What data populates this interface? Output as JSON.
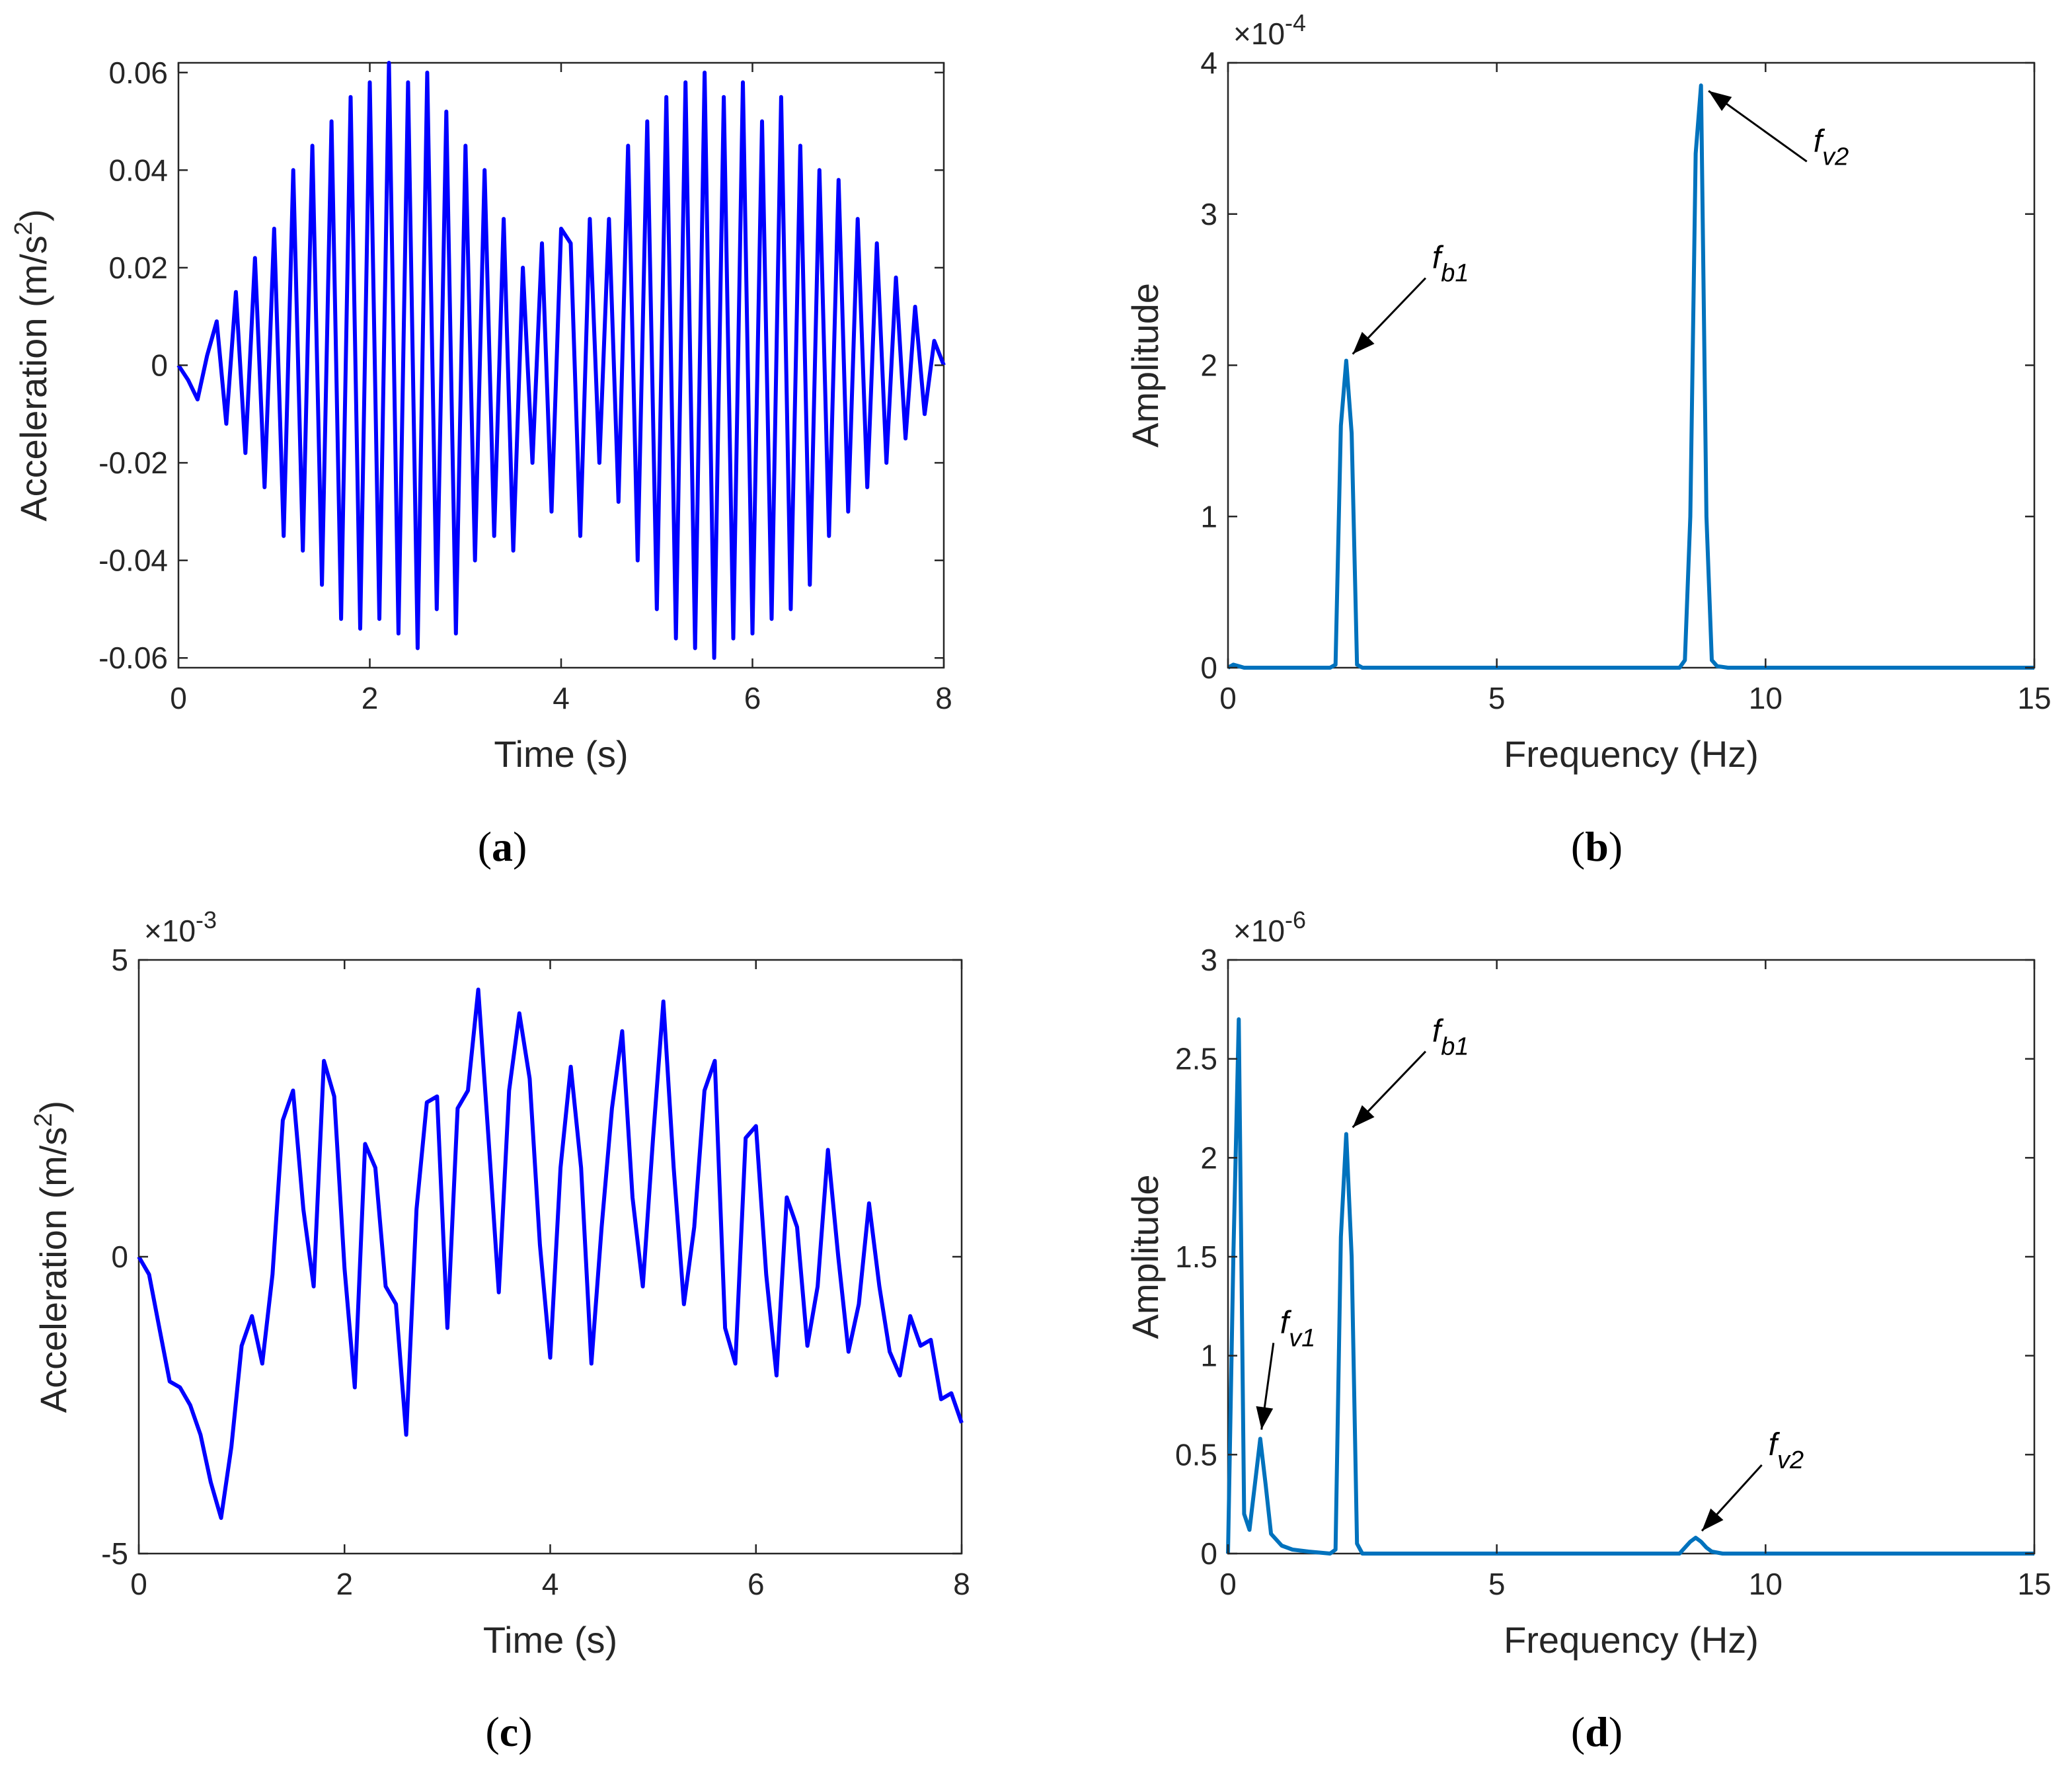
{
  "chart_data": [
    {
      "type": "line",
      "panel_label": "a",
      "xlabel": "Time (s)",
      "ylabel": "Acceleration (m/s",
      "ylabel_superscript": "2",
      "ylabel_suffix": ")",
      "xlim": [
        0,
        8
      ],
      "ylim": [
        -0.062,
        0.062
      ],
      "xticks": [
        0,
        2,
        4,
        6,
        8
      ],
      "xtick_labels": [
        "0",
        "2",
        "4",
        "6",
        "8"
      ],
      "yticks": [
        -0.06,
        -0.04,
        -0.02,
        0,
        0.02,
        0.04,
        0.06
      ],
      "ytick_labels": [
        "-0.06",
        "-0.04",
        "-0.02",
        "0",
        "0.02",
        "0.04",
        "0.06"
      ],
      "multiplier": "",
      "color": "#0000ff",
      "grid": false,
      "series": [
        {
          "x": [
            0,
            0.1,
            0.2,
            0.3,
            0.4,
            0.5,
            0.6,
            0.7,
            0.8,
            0.9,
            1.0,
            1.1,
            1.2,
            1.3,
            1.4,
            1.5,
            1.6,
            1.7,
            1.8,
            1.9,
            2.0,
            2.1,
            2.2,
            2.3,
            2.4,
            2.5,
            2.6,
            2.7,
            2.8,
            2.9,
            3.0,
            3.1,
            3.2,
            3.3,
            3.4,
            3.5,
            3.6,
            3.7,
            3.8,
            3.9,
            4.0,
            4.1,
            4.2,
            4.3,
            4.4,
            4.5,
            4.6,
            4.7,
            4.8,
            4.9,
            5.0,
            5.1,
            5.2,
            5.3,
            5.4,
            5.5,
            5.6,
            5.7,
            5.8,
            5.9,
            6.0,
            6.1,
            6.2,
            6.3,
            6.4,
            6.5,
            6.6,
            6.7,
            6.8,
            6.9,
            7.0,
            7.1,
            7.2,
            7.3,
            7.4,
            7.5,
            7.6,
            7.7,
            7.8,
            7.9,
            8.0
          ],
          "y": [
            0,
            -0.003,
            -0.007,
            0.002,
            0.009,
            -0.012,
            0.015,
            -0.018,
            0.022,
            -0.025,
            0.028,
            -0.035,
            0.04,
            -0.038,
            0.045,
            -0.045,
            0.05,
            -0.052,
            0.055,
            -0.054,
            0.058,
            -0.052,
            0.062,
            -0.055,
            0.058,
            -0.058,
            0.06,
            -0.05,
            0.052,
            -0.055,
            0.045,
            -0.04,
            0.04,
            -0.035,
            0.03,
            -0.038,
            0.02,
            -0.02,
            0.025,
            -0.03,
            0.028,
            0.025,
            -0.035,
            0.03,
            -0.02,
            0.03,
            -0.028,
            0.045,
            -0.04,
            0.05,
            -0.05,
            0.055,
            -0.056,
            0.058,
            -0.058,
            0.06,
            -0.06,
            0.055,
            -0.056,
            0.058,
            -0.055,
            0.05,
            -0.052,
            0.055,
            -0.05,
            0.045,
            -0.045,
            0.04,
            -0.035,
            0.038,
            -0.03,
            0.03,
            -0.025,
            0.025,
            -0.02,
            0.018,
            -0.015,
            0.012,
            -0.01,
            0.005,
            0
          ]
        }
      ]
    },
    {
      "type": "line",
      "panel_label": "b",
      "xlabel": "Frequency (Hz)",
      "ylabel": "Amplitude",
      "xlim": [
        0,
        15
      ],
      "ylim": [
        0,
        4
      ],
      "xticks": [
        0,
        5,
        10,
        15
      ],
      "xtick_labels": [
        "0",
        "5",
        "10",
        "15"
      ],
      "yticks": [
        0,
        1,
        2,
        3,
        4
      ],
      "ytick_labels": [
        "0",
        "1",
        "2",
        "3",
        "4"
      ],
      "multiplier": "×10",
      "multiplier_exp": "-4",
      "color": "#0072bd",
      "grid": false,
      "series": [
        {
          "x": [
            0,
            0.1,
            0.2,
            0.3,
            1.9,
            2.0,
            2.1,
            2.2,
            2.3,
            2.4,
            2.5,
            8.4,
            8.5,
            8.6,
            8.7,
            8.8,
            8.9,
            9.0,
            9.1,
            9.3,
            15
          ],
          "y": [
            0,
            0.02,
            0.01,
            0,
            0,
            0.02,
            1.6,
            2.03,
            1.55,
            0.02,
            0,
            0,
            0.05,
            1.0,
            3.4,
            3.85,
            1.0,
            0.05,
            0.01,
            0,
            0
          ]
        }
      ],
      "annotations": [
        {
          "label": "f",
          "sub": "b1",
          "x": 2.2,
          "y": 2.03
        },
        {
          "label": "f",
          "sub": "v2",
          "x": 8.8,
          "y": 3.85
        }
      ]
    },
    {
      "type": "line",
      "panel_label": "c",
      "xlabel": "Time (s)",
      "ylabel": "Acceleration (m/s",
      "ylabel_superscript": "2",
      "ylabel_suffix": ")",
      "xlim": [
        0,
        8
      ],
      "ylim": [
        -5,
        5
      ],
      "xticks": [
        0,
        2,
        4,
        6,
        8
      ],
      "xtick_labels": [
        "0",
        "2",
        "4",
        "6",
        "8"
      ],
      "yticks": [
        -5,
        0,
        5
      ],
      "ytick_labels": [
        "-5",
        "0",
        "5"
      ],
      "multiplier": "×10",
      "multiplier_exp": "-3",
      "color": "#0000ff",
      "grid": false,
      "series": [
        {
          "x": [
            0,
            0.1,
            0.2,
            0.3,
            0.4,
            0.5,
            0.6,
            0.7,
            0.8,
            0.9,
            1.0,
            1.1,
            1.2,
            1.3,
            1.4,
            1.5,
            1.6,
            1.7,
            1.8,
            1.9,
            2.0,
            2.1,
            2.2,
            2.3,
            2.4,
            2.5,
            2.6,
            2.7,
            2.8,
            2.9,
            3.0,
            3.1,
            3.2,
            3.3,
            3.4,
            3.5,
            3.6,
            3.7,
            3.8,
            3.9,
            4.0,
            4.1,
            4.2,
            4.3,
            4.4,
            4.5,
            4.6,
            4.7,
            4.8,
            4.9,
            5.0,
            5.1,
            5.2,
            5.3,
            5.4,
            5.5,
            5.6,
            5.7,
            5.8,
            5.9,
            6.0,
            6.1,
            6.2,
            6.3,
            6.4,
            6.5,
            6.6,
            6.7,
            6.8,
            6.9,
            7.0,
            7.1,
            7.2,
            7.3,
            7.4,
            7.5,
            7.6,
            7.7,
            7.8,
            7.9,
            8.0
          ],
          "y": [
            0,
            -0.3,
            -1.2,
            -2.1,
            -2.2,
            -2.5,
            -3.0,
            -3.8,
            -4.4,
            -3.2,
            -1.5,
            -1.0,
            -1.8,
            -0.3,
            2.3,
            2.8,
            0.8,
            -0.5,
            3.3,
            2.7,
            -0.2,
            -2.2,
            1.9,
            1.5,
            -0.5,
            -0.8,
            -3.0,
            0.8,
            2.6,
            2.7,
            -1.2,
            2.5,
            2.8,
            4.5,
            2.0,
            -0.6,
            2.8,
            4.1,
            3.0,
            0.2,
            -1.7,
            1.5,
            3.2,
            1.5,
            -1.8,
            0.5,
            2.5,
            3.8,
            1.0,
            -0.5,
            2.0,
            4.3,
            1.5,
            -0.8,
            0.5,
            2.8,
            3.3,
            -1.2,
            -1.8,
            2.0,
            2.2,
            -0.3,
            -2.0,
            1.0,
            0.5,
            -1.5,
            -0.5,
            1.8,
            0.0,
            -1.6,
            -0.8,
            0.9,
            -0.5,
            -1.6,
            -2.0,
            -1.0,
            -1.5,
            -1.4,
            -2.4,
            -2.3,
            -2.8
          ]
        }
      ]
    },
    {
      "type": "line",
      "panel_label": "d",
      "xlabel": "Frequency (Hz)",
      "ylabel": "Amplitude",
      "xlim": [
        0,
        15
      ],
      "ylim": [
        0,
        3
      ],
      "xticks": [
        0,
        5,
        10,
        15
      ],
      "xtick_labels": [
        "0",
        "5",
        "10",
        "15"
      ],
      "yticks": [
        0,
        0.5,
        1,
        1.5,
        2,
        2.5,
        3
      ],
      "ytick_labels": [
        "0",
        "0.5",
        "1",
        "1.5",
        "2",
        "2.5",
        "3"
      ],
      "multiplier": "×10",
      "multiplier_exp": "-6",
      "color": "#0072bd",
      "grid": false,
      "series": [
        {
          "x": [
            0,
            0.1,
            0.2,
            0.3,
            0.4,
            0.5,
            0.6,
            0.7,
            0.8,
            1.0,
            1.2,
            1.5,
            1.9,
            2.0,
            2.1,
            2.2,
            2.3,
            2.4,
            2.5,
            3.0,
            8.4,
            8.5,
            8.6,
            8.7,
            8.8,
            8.9,
            9.0,
            9.2,
            15
          ],
          "y": [
            0,
            1.5,
            2.7,
            0.2,
            0.12,
            0.35,
            0.58,
            0.35,
            0.1,
            0.04,
            0.02,
            0.01,
            0,
            0.02,
            1.6,
            2.12,
            1.5,
            0.05,
            0,
            0,
            0,
            0.03,
            0.06,
            0.08,
            0.06,
            0.03,
            0.01,
            0,
            0
          ]
        }
      ],
      "annotations": [
        {
          "label": "f",
          "sub": "v1",
          "x": 0.6,
          "y": 0.58
        },
        {
          "label": "f",
          "sub": "b1",
          "x": 2.2,
          "y": 2.12
        },
        {
          "label": "f",
          "sub": "v2",
          "x": 8.7,
          "y": 0.08
        }
      ]
    }
  ]
}
